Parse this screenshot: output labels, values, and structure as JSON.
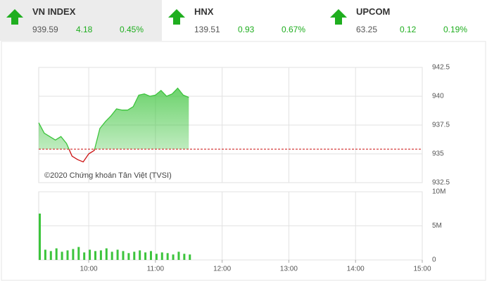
{
  "indices": [
    {
      "name": "VN INDEX",
      "value": 939.59,
      "change": 4.18,
      "percent": "0.45%",
      "active": true
    },
    {
      "name": "HNX",
      "value": 139.51,
      "change": 0.93,
      "percent": "0.67%",
      "active": false
    },
    {
      "name": "UPCOM",
      "value": 63.25,
      "change": 0.12,
      "percent": "0.19%",
      "active": false
    }
  ],
  "chart_data": [
    {
      "type": "line",
      "annotation": "©2020 Chứng khoán Tân Việt (TVSI)",
      "x": [
        555,
        560,
        565,
        570,
        575,
        580,
        585,
        590,
        595,
        600,
        605,
        610,
        615,
        620,
        625,
        630,
        635,
        640,
        645,
        650,
        655,
        660,
        665,
        670,
        675,
        680,
        685,
        690
      ],
      "values": [
        937.7,
        936.8,
        936.5,
        936.2,
        936.5,
        935.9,
        934.8,
        934.5,
        934.3,
        935.0,
        935.3,
        937.2,
        937.8,
        938.3,
        938.9,
        938.8,
        938.8,
        939.1,
        940.1,
        940.2,
        940.0,
        940.1,
        940.5,
        940.0,
        940.2,
        940.7,
        940.1,
        939.9
      ],
      "reference": 935.41,
      "up_color": "#3cc43c",
      "down_color": "#cc1111",
      "reference_color": "#cc1111",
      "xlim": [
        555,
        900
      ],
      "ylim": [
        932.5,
        942.5
      ],
      "yticks": [
        932.5,
        935,
        937.5,
        940,
        942.5
      ],
      "grid": true
    },
    {
      "type": "bar",
      "color": "#3cc43c",
      "x": [
        555,
        560,
        565,
        570,
        575,
        580,
        585,
        590,
        595,
        600,
        605,
        610,
        615,
        620,
        625,
        630,
        635,
        640,
        645,
        650,
        655,
        660,
        665,
        670,
        675,
        680,
        685,
        690
      ],
      "values": [
        6800000,
        1500000,
        1300000,
        1700000,
        1200000,
        1400000,
        1600000,
        1900000,
        1100000,
        1500000,
        1300000,
        1400000,
        1700000,
        1200000,
        1500000,
        1300000,
        1000000,
        1200000,
        1400000,
        1100000,
        1300000,
        900000,
        1100000,
        1000000,
        800000,
        1200000,
        900000,
        800000
      ],
      "xlim": [
        555,
        900
      ],
      "xticks": [
        {
          "value": 600,
          "label": "10:00"
        },
        {
          "value": 660,
          "label": "11:00"
        },
        {
          "value": 720,
          "label": "12:00"
        },
        {
          "value": 780,
          "label": "13:00"
        },
        {
          "value": 840,
          "label": "14:00"
        },
        {
          "value": 900,
          "label": "15:00"
        }
      ],
      "ylim": [
        0,
        10000000
      ],
      "yticks": [
        0,
        {
          "value": 5000000,
          "label": "5M"
        },
        {
          "value": 10000000,
          "label": "10M"
        }
      ],
      "grid": true
    }
  ]
}
